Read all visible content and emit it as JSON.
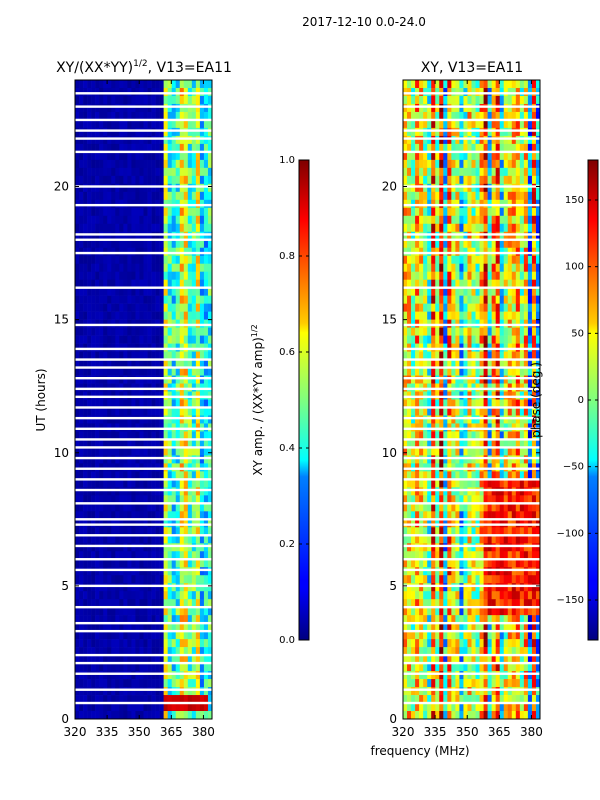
{
  "figure_title": "2017-12-10 0.0-24.0",
  "shared_xlabel": "frequency (MHz)",
  "colors": {
    "masked_row": "#ffffff",
    "low": "#00007f",
    "frame": "#000000"
  },
  "chart_data": [
    {
      "type": "heatmap",
      "title_main": "XY/(XX*YY)",
      "title_sup": "1/2",
      "title_tail": ", V13=EA11",
      "ylabel": "UT (hours)",
      "x_ticks": [
        "320",
        "335",
        "350",
        "365",
        "380"
      ],
      "x_tick_values": [
        320,
        335,
        350,
        365,
        380
      ],
      "xlim": [
        320,
        384
      ],
      "y_ticks": [
        "0",
        "5",
        "10",
        "15",
        "20"
      ],
      "y_tick_values": [
        0,
        5,
        10,
        15,
        20
      ],
      "ylim": [
        0,
        24
      ],
      "colorbar": {
        "label_main": "XY amp. / (XX*YY amp)",
        "label_sup": "1/2",
        "ticks": [
          "0.0",
          "0.2",
          "0.4",
          "0.6",
          "0.8",
          "1.0"
        ],
        "tick_values": [
          0.0,
          0.2,
          0.4,
          0.6,
          0.8,
          1.0
        ],
        "range": [
          0.0,
          1.0
        ]
      },
      "masked_ut_hours": [
        0.6,
        1.1,
        1.7,
        2.1,
        2.4,
        3.3,
        3.6,
        4.2,
        5.0,
        5.6,
        6.0,
        6.5,
        6.9,
        7.3,
        7.5,
        8.1,
        8.6,
        9.0,
        9.4,
        9.8,
        10.2,
        10.5,
        10.9,
        11.3,
        11.7,
        12.1,
        12.4,
        12.8,
        13.2,
        13.5,
        13.9,
        14.8,
        16.2,
        17.5,
        18.0,
        18.2,
        19.3,
        20.0,
        21.3,
        21.8,
        22.1,
        22.5,
        23.0,
        23.5
      ],
      "low_fraction_band_mhz": [
        320,
        362
      ],
      "high_value_region": {
        "ut_range": [
          0.2,
          0.9
        ],
        "freq_range_mhz": [
          362,
          382
        ],
        "value": 0.95
      }
    },
    {
      "type": "heatmap",
      "title_main": "XY, V13=EA11",
      "title_sup": "",
      "title_tail": "",
      "ylabel": "",
      "x_ticks": [
        "320",
        "335",
        "350",
        "365",
        "380"
      ],
      "x_tick_values": [
        320,
        335,
        350,
        365,
        380
      ],
      "xlim": [
        320,
        384
      ],
      "y_ticks": [
        "0",
        "5",
        "10",
        "15",
        "20"
      ],
      "y_tick_values": [
        0,
        5,
        10,
        15,
        20
      ],
      "ylim": [
        0,
        24
      ],
      "colorbar": {
        "label_main": "phase (deg.)",
        "label_sup": "",
        "ticks": [
          "−150",
          "−100",
          "−50",
          "0",
          "50",
          "100",
          "150"
        ],
        "tick_values": [
          -150,
          -100,
          -50,
          0,
          50,
          100,
          150
        ],
        "range": [
          -180,
          180
        ]
      },
      "masked_ut_hours": [
        0.6,
        1.1,
        1.7,
        2.1,
        2.4,
        3.3,
        3.6,
        4.2,
        5.0,
        5.6,
        6.0,
        6.5,
        6.9,
        7.3,
        7.5,
        8.1,
        8.6,
        9.0,
        9.4,
        9.8,
        10.2,
        10.5,
        10.9,
        11.3,
        11.7,
        12.1,
        12.4,
        12.8,
        13.2,
        13.5,
        13.9,
        14.8,
        16.2,
        17.5,
        18.0,
        18.2,
        19.3,
        20.0,
        21.3,
        21.8,
        22.1,
        22.5,
        23.0,
        23.5
      ]
    }
  ]
}
